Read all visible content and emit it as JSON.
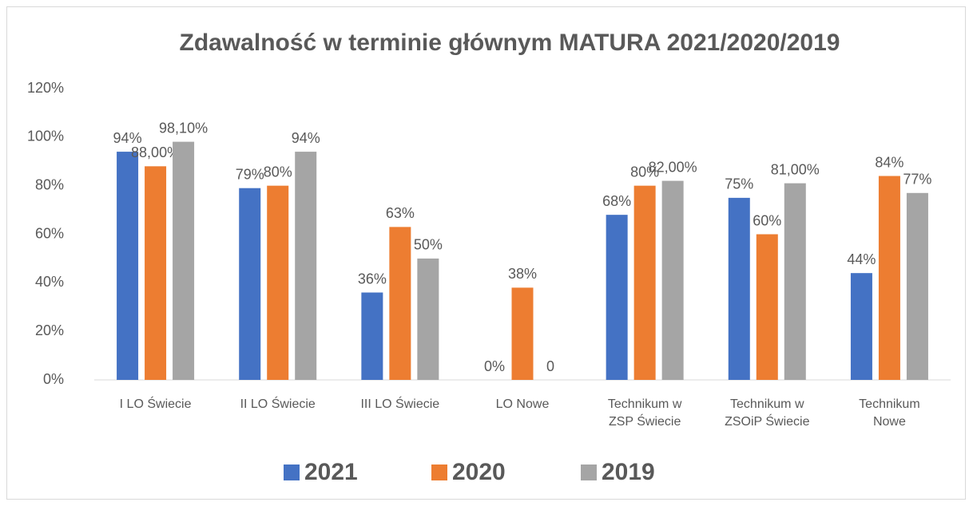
{
  "chart_data": {
    "type": "bar",
    "title": "Zdawalność  w terminie głównym MATURA 2021/2020/2019",
    "categories": [
      "I LO Świecie",
      "II LO Świecie",
      "III LO Świecie",
      "LO Nowe",
      "Technikum w ZSP Świecie",
      "Technikum w ZSOiP Świecie",
      "Technikum Nowe"
    ],
    "series": [
      {
        "name": "2021",
        "color": "#4472c4",
        "values": [
          94,
          79,
          36,
          0,
          68,
          75,
          44
        ],
        "value_labels": [
          "94%",
          "79%",
          "36%",
          "0%",
          "68%",
          "75%",
          "44%"
        ]
      },
      {
        "name": "2020",
        "color": "#ed7d31",
        "values": [
          88,
          80,
          63,
          38,
          80,
          60,
          84
        ],
        "value_labels": [
          "88,00%",
          "80%",
          "63%",
          "38%",
          "80%",
          "60%",
          "84%"
        ]
      },
      {
        "name": "2019",
        "color": "#a5a5a5",
        "values": [
          98.1,
          94,
          50,
          0,
          82,
          81,
          77
        ],
        "value_labels": [
          "98,10%",
          "94%",
          "50%",
          "0",
          "82,00%",
          "81,00%",
          "77%"
        ]
      }
    ],
    "ylim": [
      0,
      120
    ],
    "yticks": [
      {
        "value": 0,
        "label": "0%"
      },
      {
        "value": 20,
        "label": "20%"
      },
      {
        "value": 40,
        "label": "40%"
      },
      {
        "value": 60,
        "label": "60%"
      },
      {
        "value": 80,
        "label": "80%"
      },
      {
        "value": 100,
        "label": "100%"
      },
      {
        "value": 120,
        "label": "120%"
      }
    ],
    "grid": false,
    "legend": "bottom"
  }
}
